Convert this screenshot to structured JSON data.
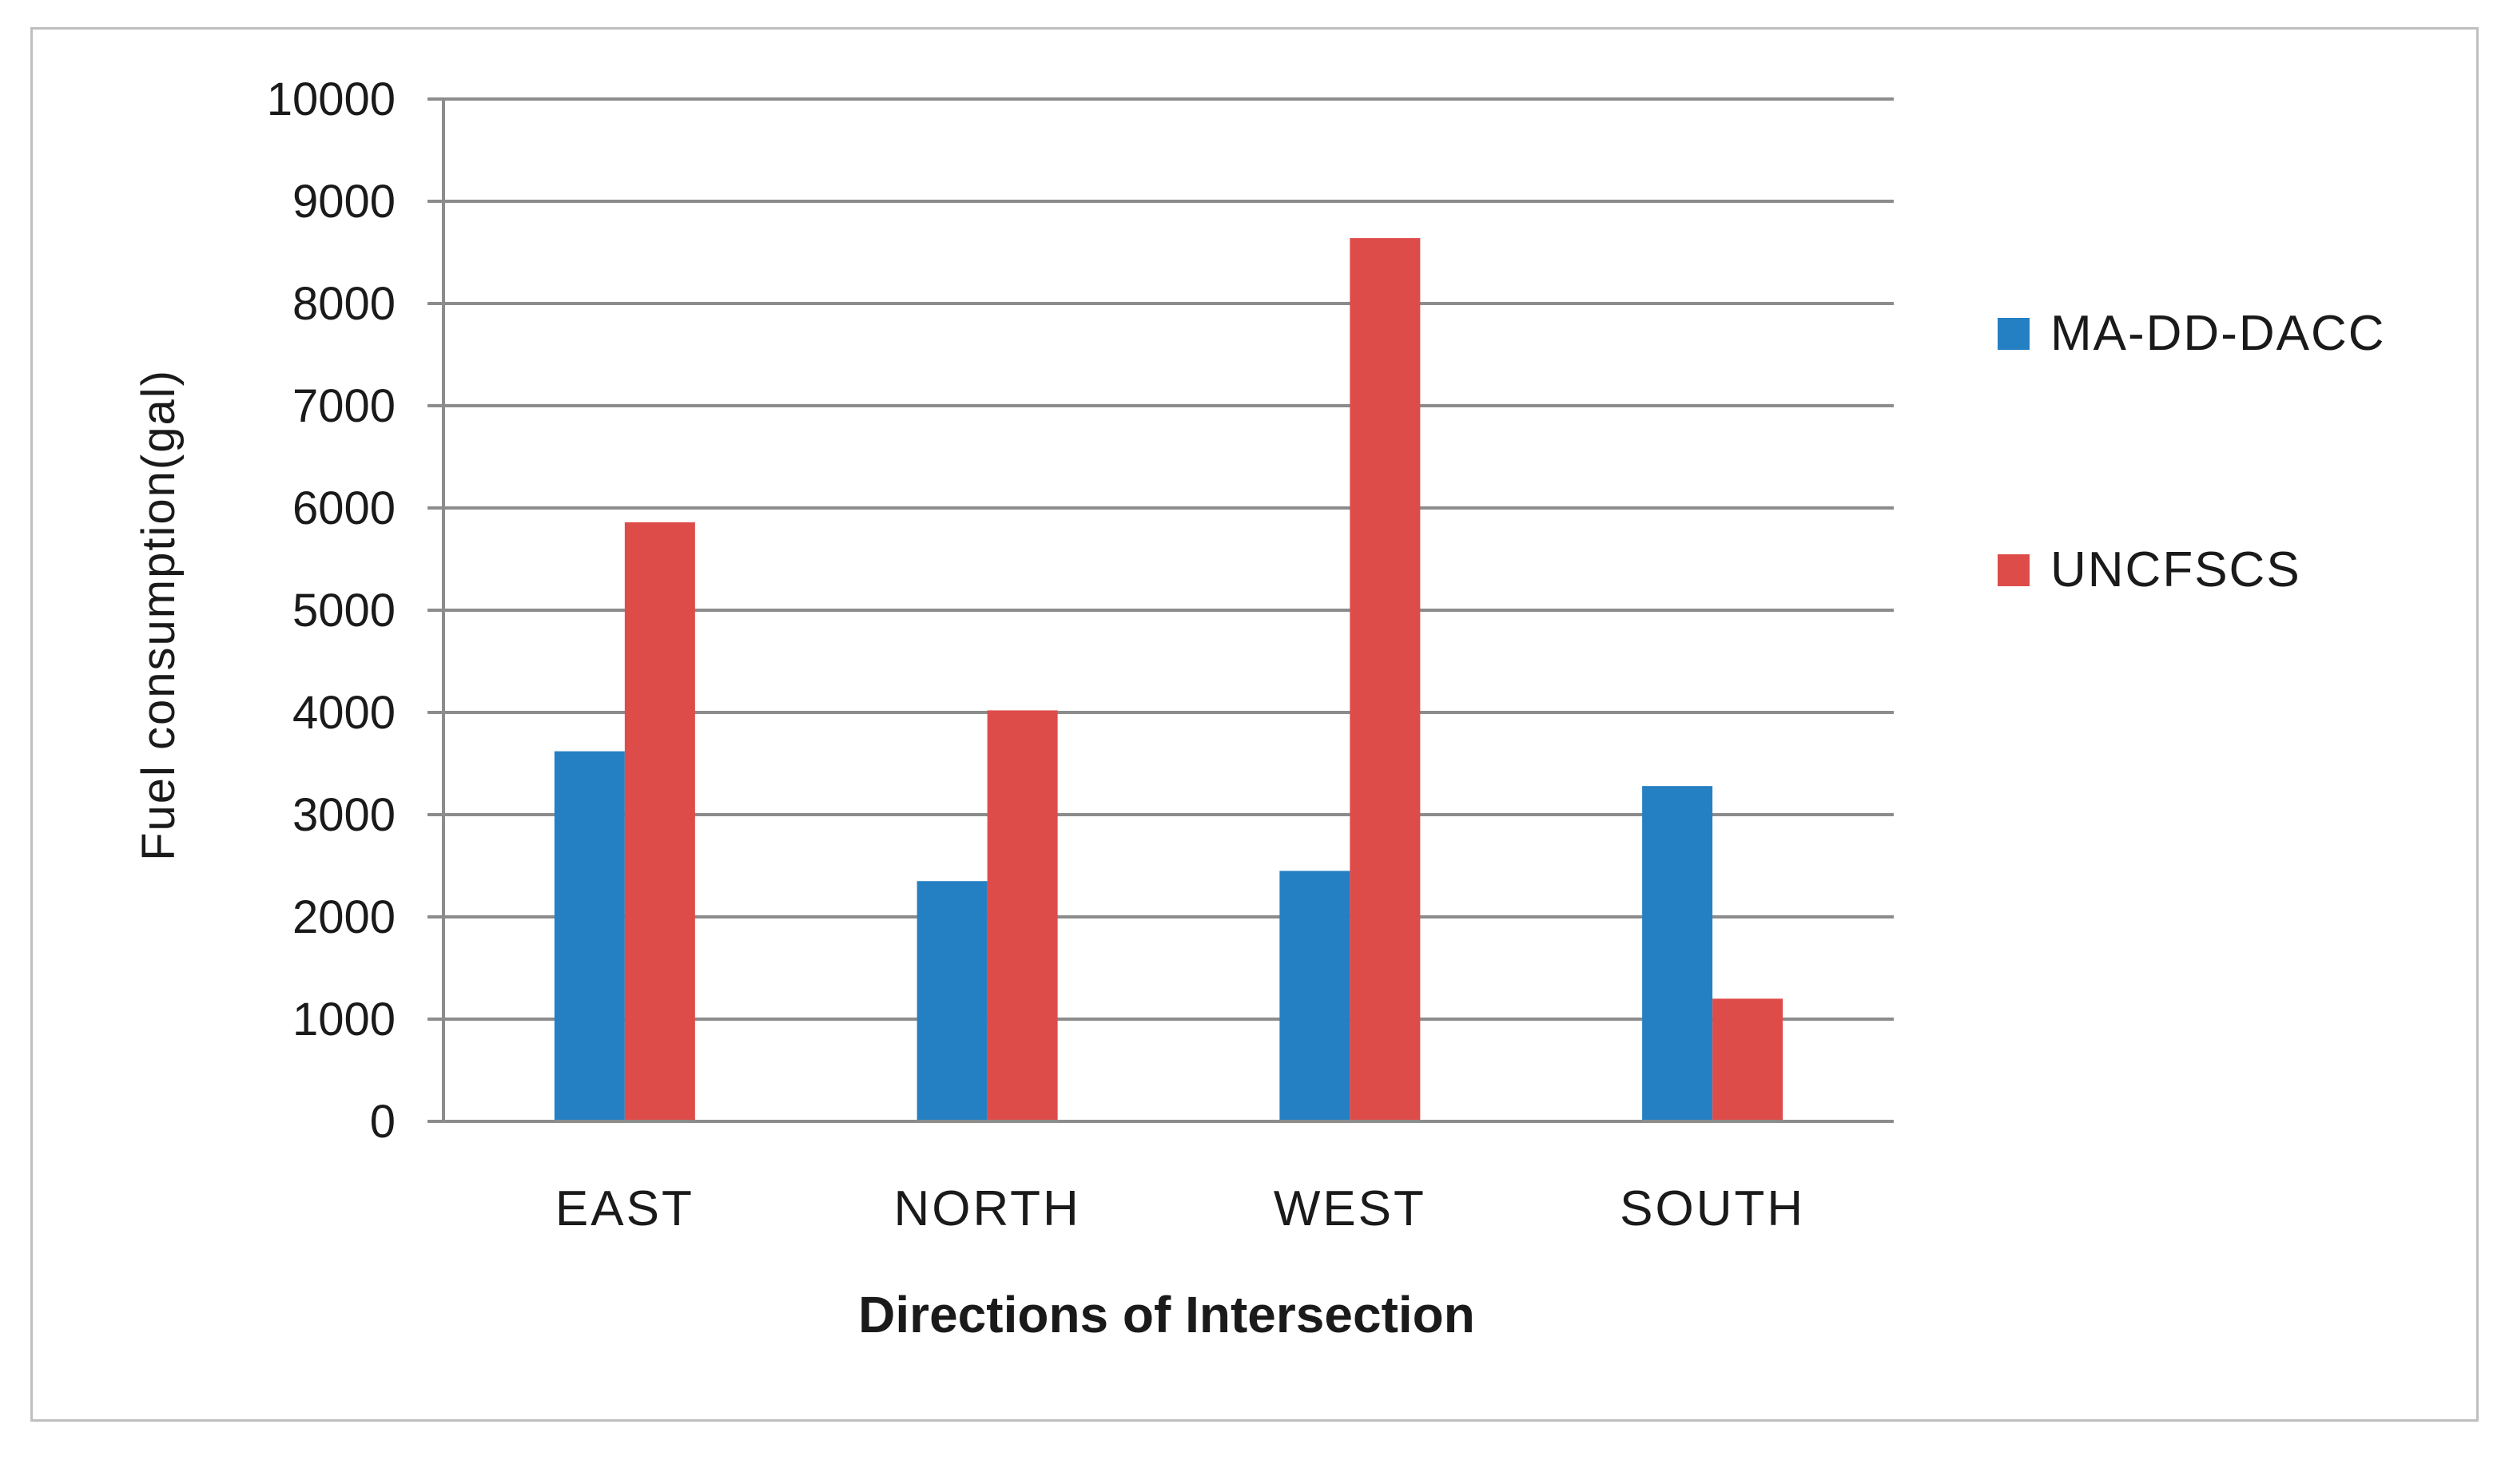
{
  "chart_data": {
    "type": "bar",
    "categories": [
      "EAST",
      "NORTH",
      "WEST",
      "SOUTH"
    ],
    "series": [
      {
        "name": "MA-DD-DACC",
        "values": [
          3620,
          2350,
          2450,
          3280
        ],
        "color": "#2580c3"
      },
      {
        "name": "UNCFSCS",
        "values": [
          5860,
          4020,
          8640,
          1200
        ],
        "color": "#de4c4a"
      }
    ],
    "xlabel": "Directions of Intersection",
    "ylabel": "Fuel consumption(gal)",
    "ylim": [
      0,
      10000
    ],
    "yticks": [
      0,
      1000,
      2000,
      3000,
      4000,
      5000,
      6000,
      7000,
      8000,
      9000,
      10000
    ],
    "grid": true,
    "legend_position": "right"
  }
}
